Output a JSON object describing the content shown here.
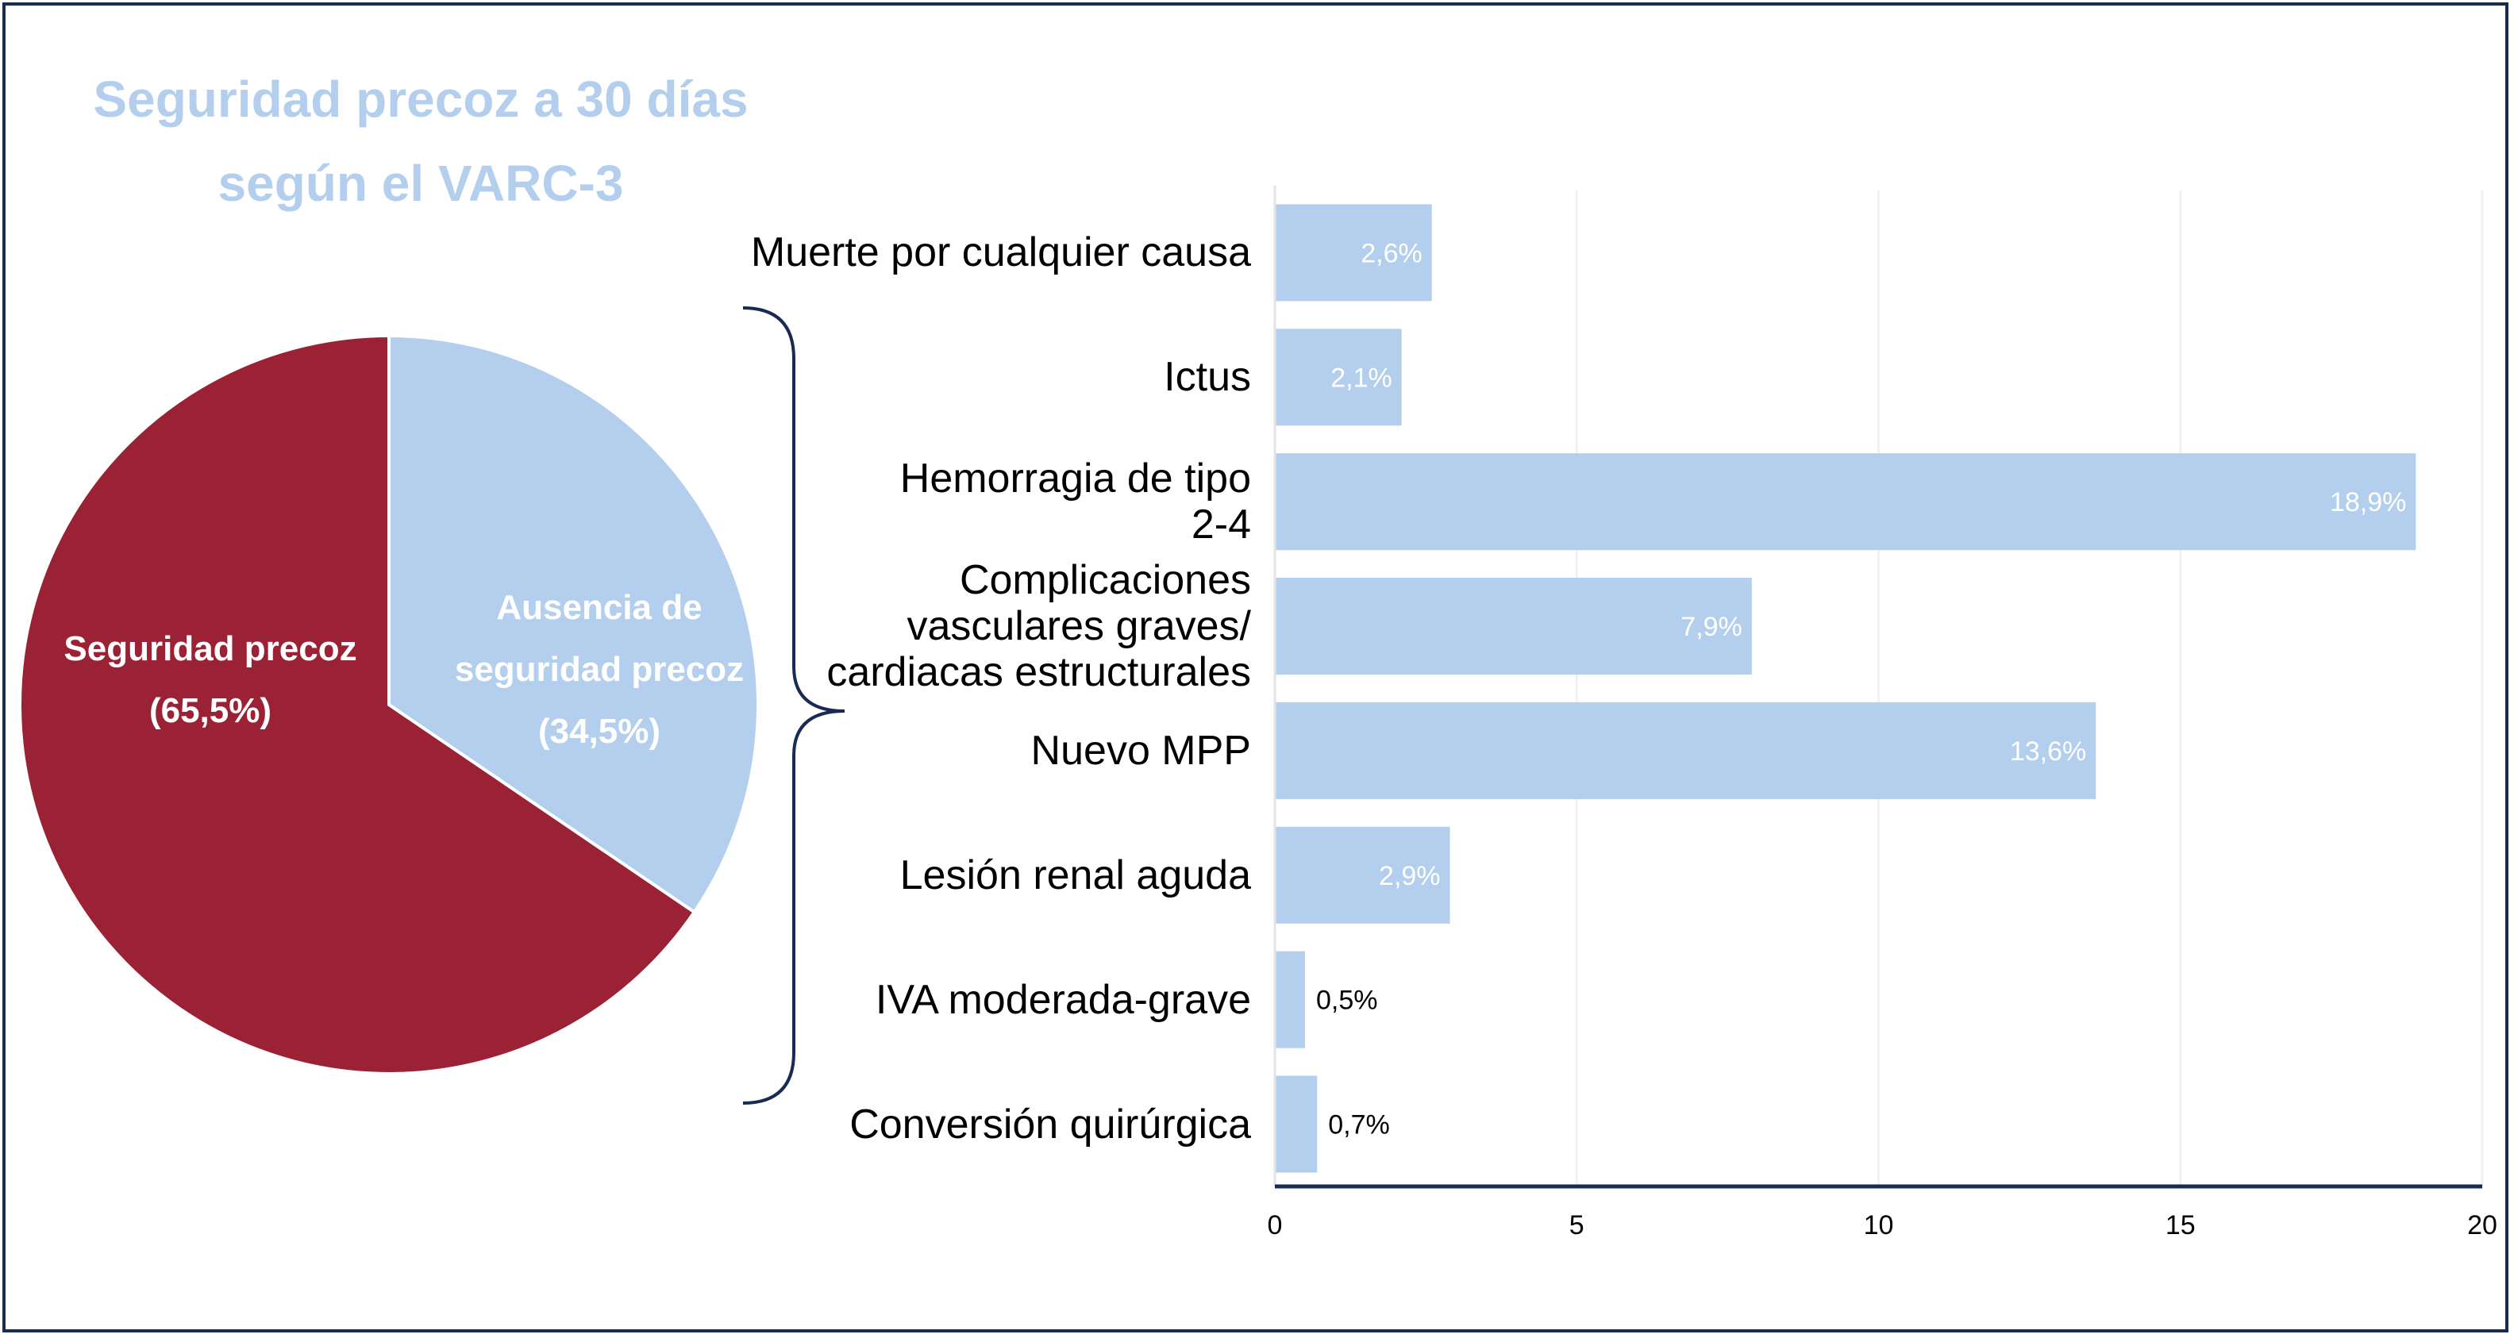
{
  "pie_title_lines": [
    "Seguridad precoz a 30 días",
    "según el VARC-3"
  ],
  "colors": {
    "pie_primary": "#9b2235",
    "pie_secondary": "#b3cfed",
    "bar": "#b3cfed",
    "title": "#b3cfed",
    "axis": "#1a2a52"
  },
  "chart_data": [
    {
      "type": "pie",
      "title": "Seguridad precoz a 30 días según el VARC-3",
      "slices": [
        {
          "label_lines": [
            "Ausencia de",
            "seguridad precoz",
            "(34,5%)"
          ],
          "value": 34.5,
          "color": "#b3cfed"
        },
        {
          "label_lines": [
            "Seguridad precoz",
            "(65,5%)"
          ],
          "value": 65.5,
          "color": "#9b2235"
        }
      ]
    },
    {
      "type": "bar",
      "orientation": "horizontal",
      "categories": [
        "Muerte por cualquier causa",
        "Ictus",
        "Hemorragia de tipo\n2-4",
        "Complicaciones\nvasculares graves/\ncardiacas estructurales",
        "Nuevo MPP",
        "Lesión renal aguda",
        "IVA moderada-grave",
        "Conversión quirúrgica"
      ],
      "values": [
        2.6,
        2.1,
        18.9,
        7.9,
        13.6,
        2.9,
        0.5,
        0.7
      ],
      "value_labels": [
        "2,6%",
        "2,1%",
        "18,9%",
        "7,9%",
        "13,6%",
        "2,9%",
        "0,5%",
        "0,7%"
      ],
      "xlim": [
        0,
        20
      ],
      "xticks": [
        "0",
        "5",
        "10",
        "15",
        "20"
      ],
      "grid": true
    }
  ]
}
